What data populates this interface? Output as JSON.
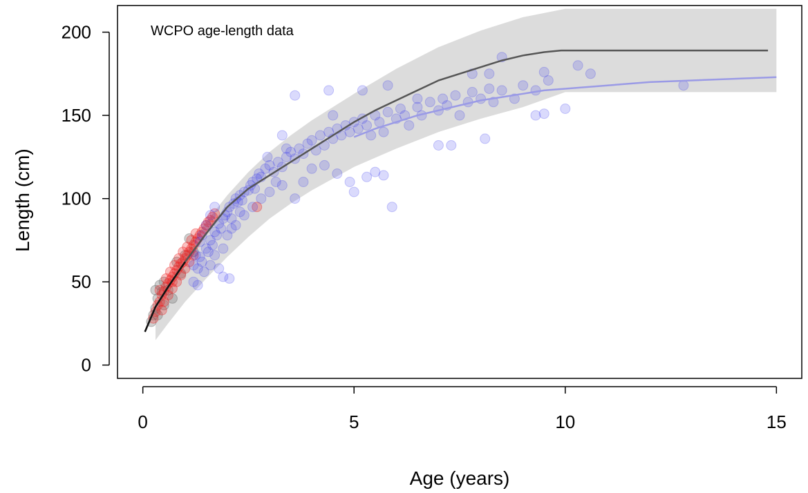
{
  "chart_data": {
    "type": "scatter",
    "title": "WCPO age-length data",
    "xlabel": "Age (years)",
    "ylabel": "Length (cm)",
    "xlim": [
      -0.6,
      15.6
    ],
    "ylim": [
      -8,
      216
    ],
    "x_ticks": [
      0,
      5,
      10,
      15
    ],
    "y_ticks": [
      0,
      50,
      100,
      150,
      200
    ],
    "grid": false,
    "legend": "none",
    "colors": {
      "band": "#dcdcdc",
      "curve_fit": "#555555",
      "curve_blue": "#9a9ae6",
      "curve_young": "#111111",
      "points_blue": "#3333ee",
      "points_red": "#ee2222",
      "points_grey": "#777777"
    },
    "uncertainty_band": {
      "x": [
        0.3,
        0.6,
        1.0,
        1.5,
        2.0,
        2.5,
        3.0,
        3.5,
        4.0,
        5.0,
        6.0,
        7.0,
        8.0,
        9.0,
        10.0,
        15.0
      ],
      "lower": [
        15,
        25,
        38,
        52,
        65,
        77,
        88,
        97,
        105,
        119,
        130,
        140,
        148,
        155,
        164,
        164
      ],
      "upper": [
        33,
        50,
        68,
        86,
        102,
        116,
        128,
        138,
        147,
        163,
        178,
        191,
        201,
        209,
        214,
        214
      ]
    },
    "series": [
      {
        "x": [
          0.05,
          0.3,
          0.6,
          1.0,
          1.5,
          2.0,
          2.5,
          3.0,
          3.5,
          4.0,
          4.5,
          5.0,
          5.5,
          6.0,
          6.5,
          7.0,
          7.5,
          8.0,
          8.5,
          9.0,
          9.5,
          9.9,
          14.8
        ],
        "y": [
          20,
          35,
          47,
          62,
          79,
          95,
          106,
          114,
          122,
          130,
          138,
          146,
          153,
          159,
          165,
          171,
          175,
          179,
          183,
          186,
          188,
          189,
          189
        ]
      },
      {
        "x": [
          5.0,
          5.5,
          6.0,
          6.5,
          7.0,
          7.5,
          8.0,
          8.5,
          9.0,
          9.5,
          10.0,
          11.0,
          12.0,
          13.0,
          14.0,
          15.0
        ],
        "y": [
          137,
          142,
          146,
          150,
          153,
          156,
          159,
          161,
          163,
          165,
          166,
          168,
          170,
          171,
          172,
          173
        ]
      }
    ],
    "points": {
      "blue": [
        [
          1.2,
          50
        ],
        [
          1.3,
          58
        ],
        [
          1.35,
          65
        ],
        [
          1.4,
          62
        ],
        [
          1.5,
          70
        ],
        [
          1.55,
          68
        ],
        [
          1.6,
          75
        ],
        [
          1.65,
          72
        ],
        [
          1.7,
          80
        ],
        [
          1.75,
          78
        ],
        [
          1.8,
          85
        ],
        [
          1.85,
          82
        ],
        [
          1.9,
          88
        ],
        [
          1.95,
          90
        ],
        [
          2.0,
          92
        ],
        [
          2.05,
          95
        ],
        [
          2.1,
          88
        ],
        [
          2.15,
          97
        ],
        [
          2.2,
          100
        ],
        [
          2.25,
          98
        ],
        [
          2.3,
          102
        ],
        [
          2.35,
          99
        ],
        [
          2.4,
          104
        ],
        [
          2.5,
          105
        ],
        [
          2.55,
          108
        ],
        [
          2.6,
          110
        ],
        [
          2.65,
          106
        ],
        [
          2.7,
          112
        ],
        [
          2.75,
          115
        ],
        [
          2.8,
          113
        ],
        [
          2.9,
          118
        ],
        [
          3.0,
          120
        ],
        [
          3.1,
          116
        ],
        [
          3.2,
          122
        ],
        [
          3.3,
          119
        ],
        [
          3.4,
          125
        ],
        [
          3.5,
          128
        ],
        [
          3.6,
          124
        ],
        [
          3.7,
          130
        ],
        [
          3.8,
          127
        ],
        [
          3.9,
          133
        ],
        [
          4.0,
          135
        ],
        [
          4.1,
          129
        ],
        [
          4.2,
          138
        ],
        [
          4.3,
          132
        ],
        [
          4.4,
          140
        ],
        [
          4.5,
          136
        ],
        [
          4.6,
          142
        ],
        [
          4.7,
          138
        ],
        [
          4.8,
          144
        ],
        [
          4.9,
          140
        ],
        [
          5.0,
          146
        ],
        [
          5.1,
          142
        ],
        [
          5.2,
          148
        ],
        [
          5.3,
          144
        ],
        [
          5.4,
          138
        ],
        [
          5.5,
          150
        ],
        [
          5.6,
          146
        ],
        [
          5.7,
          140
        ],
        [
          5.8,
          152
        ],
        [
          6.0,
          148
        ],
        [
          6.1,
          154
        ],
        [
          6.2,
          150
        ],
        [
          6.3,
          144
        ],
        [
          6.5,
          155
        ],
        [
          6.6,
          150
        ],
        [
          6.8,
          158
        ],
        [
          7.0,
          153
        ],
        [
          7.1,
          160
        ],
        [
          7.2,
          156
        ],
        [
          7.4,
          162
        ],
        [
          7.5,
          150
        ],
        [
          7.7,
          158
        ],
        [
          7.8,
          164
        ],
        [
          8.0,
          160
        ],
        [
          8.2,
          166
        ],
        [
          8.3,
          158
        ],
        [
          8.5,
          165
        ],
        [
          8.8,
          160
        ],
        [
          9.0,
          168
        ],
        [
          1.8,
          58
        ],
        [
          1.9,
          53
        ],
        [
          2.05,
          52
        ],
        [
          1.3,
          48
        ],
        [
          1.45,
          56
        ],
        [
          1.6,
          60
        ],
        [
          2.2,
          84
        ],
        [
          2.4,
          90
        ],
        [
          2.6,
          95
        ],
        [
          2.8,
          100
        ],
        [
          3.0,
          104
        ],
        [
          3.3,
          108
        ],
        [
          3.6,
          100
        ],
        [
          3.8,
          110
        ],
        [
          4.0,
          118
        ],
        [
          4.3,
          120
        ],
        [
          4.6,
          115
        ],
        [
          4.9,
          110
        ],
        [
          5.0,
          104
        ],
        [
          5.3,
          113
        ],
        [
          5.5,
          116
        ],
        [
          5.9,
          95
        ],
        [
          5.7,
          114
        ],
        [
          4.5,
          150
        ],
        [
          4.4,
          165
        ],
        [
          5.2,
          165
        ],
        [
          5.8,
          168
        ],
        [
          6.5,
          160
        ],
        [
          7.0,
          132
        ],
        [
          7.3,
          132
        ],
        [
          7.8,
          175
        ],
        [
          8.1,
          136
        ],
        [
          8.2,
          175
        ],
        [
          8.5,
          185
        ],
        [
          9.3,
          165
        ],
        [
          9.5,
          176
        ],
        [
          9.6,
          171
        ],
        [
          9.3,
          150
        ],
        [
          9.5,
          151
        ],
        [
          10.0,
          154
        ],
        [
          10.3,
          180
        ],
        [
          10.6,
          175
        ],
        [
          12.8,
          168
        ],
        [
          3.6,
          162
        ],
        [
          3.3,
          138
        ],
        [
          3.4,
          130
        ],
        [
          2.95,
          125
        ],
        [
          3.15,
          110
        ],
        [
          1.6,
          90
        ],
        [
          1.7,
          95
        ],
        [
          1.5,
          84
        ],
        [
          1.4,
          78
        ],
        [
          1.35,
          74
        ],
        [
          1.25,
          66
        ],
        [
          1.2,
          60
        ],
        [
          1.7,
          66
        ],
        [
          1.9,
          70
        ],
        [
          2.0,
          78
        ],
        [
          2.1,
          82
        ],
        [
          2.3,
          92
        ]
      ],
      "red": [
        [
          0.25,
          28
        ],
        [
          0.3,
          32
        ],
        [
          0.35,
          36
        ],
        [
          0.4,
          38
        ],
        [
          0.45,
          42
        ],
        [
          0.5,
          44
        ],
        [
          0.55,
          47
        ],
        [
          0.6,
          49
        ],
        [
          0.65,
          51
        ],
        [
          0.7,
          53
        ],
        [
          0.75,
          55
        ],
        [
          0.8,
          57
        ],
        [
          0.85,
          59
        ],
        [
          0.9,
          61
        ],
        [
          0.95,
          62
        ],
        [
          1.0,
          64
        ],
        [
          1.05,
          66
        ],
        [
          1.1,
          68
        ],
        [
          1.15,
          70
        ],
        [
          1.2,
          72
        ],
        [
          1.25,
          74
        ],
        [
          1.3,
          76
        ],
        [
          1.35,
          78
        ],
        [
          1.4,
          80
        ],
        [
          1.45,
          82
        ],
        [
          1.5,
          84
        ],
        [
          1.55,
          86
        ],
        [
          1.6,
          87
        ],
        [
          1.65,
          89
        ],
        [
          1.7,
          91
        ],
        [
          0.5,
          38
        ],
        [
          0.6,
          42
        ],
        [
          0.7,
          46
        ],
        [
          0.8,
          50
        ],
        [
          0.9,
          54
        ],
        [
          1.0,
          58
        ],
        [
          1.1,
          62
        ],
        [
          1.2,
          66
        ],
        [
          0.55,
          52
        ],
        [
          0.65,
          56
        ],
        [
          0.75,
          60
        ],
        [
          0.85,
          64
        ],
        [
          0.95,
          68
        ],
        [
          1.05,
          71
        ],
        [
          1.15,
          75
        ],
        [
          1.25,
          79
        ],
        [
          0.4,
          45
        ],
        [
          0.45,
          33
        ],
        [
          0.7,
          50
        ],
        [
          2.7,
          95
        ]
      ],
      "grey": [
        [
          0.2,
          26
        ],
        [
          0.25,
          30
        ],
        [
          0.3,
          34
        ],
        [
          0.35,
          40
        ],
        [
          0.4,
          48
        ],
        [
          0.45,
          44
        ],
        [
          0.5,
          50
        ],
        [
          0.3,
          45
        ],
        [
          0.6,
          45
        ],
        [
          0.7,
          40
        ],
        [
          1.0,
          66
        ],
        [
          1.1,
          76
        ],
        [
          0.8,
          62
        ],
        [
          0.9,
          55
        ],
        [
          1.2,
          68
        ],
        [
          0.35,
          30
        ],
        [
          0.5,
          36
        ]
      ]
    }
  }
}
